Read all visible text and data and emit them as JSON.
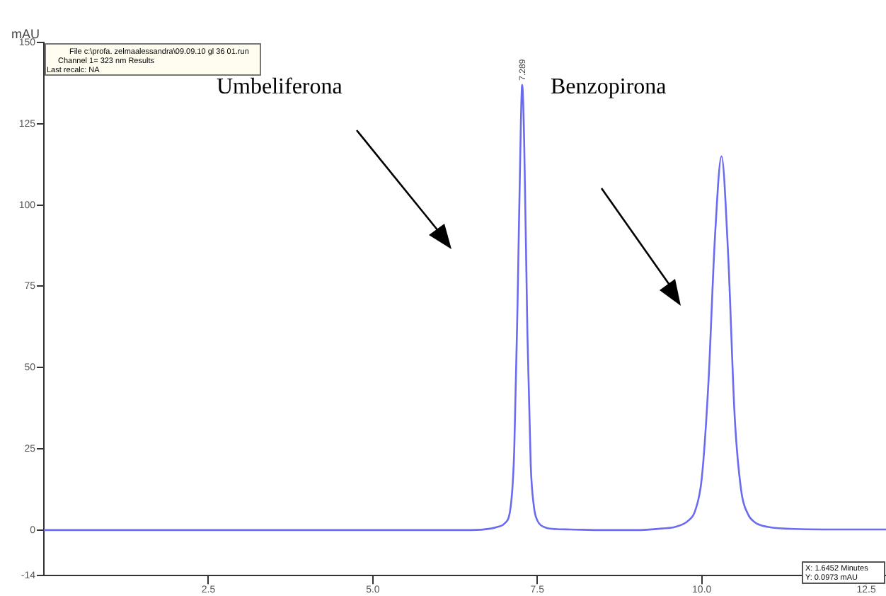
{
  "chart_data": {
    "type": "line",
    "ylabel": "mAU",
    "x": [
      0,
      1,
      2,
      3,
      4,
      5,
      6,
      6.5,
      6.8,
      6.9,
      7.0,
      7.1,
      7.15,
      7.2,
      7.25,
      7.27,
      7.3,
      7.35,
      7.4,
      7.45,
      7.5,
      7.6,
      7.8,
      8.0,
      8.5,
      9.0,
      9.4,
      9.6,
      9.8,
      9.9,
      10.0,
      10.1,
      10.2,
      10.3,
      10.4,
      10.5,
      10.6,
      10.7,
      10.8,
      11.0,
      11.5,
      12.0,
      12.8
    ],
    "series": [
      {
        "color": "#6b6bf0",
        "values": [
          0,
          0,
          0,
          0,
          0,
          0,
          0,
          0,
          0.5,
          1,
          2,
          8,
          25,
          70,
          125,
          137,
          120,
          60,
          20,
          7,
          3,
          1,
          0.3,
          0.2,
          0,
          0,
          0.5,
          1,
          3,
          6,
          16,
          45,
          90,
          115,
          85,
          35,
          12,
          5,
          2.5,
          1,
          0.3,
          0.2,
          0.2
        ]
      }
    ],
    "xlim": [
      0,
      12.8
    ],
    "xticks": [
      {
        "value": 2.5,
        "label": "2.5"
      },
      {
        "value": 5,
        "label": "5.0"
      },
      {
        "value": 7.5,
        "label": "7.5"
      },
      {
        "value": 10,
        "label": "10.0"
      },
      {
        "value": 12.5,
        "label": "12.5"
      }
    ],
    "ylim": [
      -14,
      150
    ],
    "yticks": [
      -14,
      0,
      25,
      50,
      75,
      100,
      125,
      150
    ],
    "grid": false,
    "legend": false,
    "marker": "none",
    "line_style": "solid",
    "annotations": [
      "File c:\\profa. zelmaalessandra\\09.09.10 gl 36 01.run",
      "Channel 1= 323 nm Results",
      "Last recalc: NA",
      "Umbeliferona",
      "Benzopirona",
      "X: 1.6452 Minutes",
      "Y: 0.0973 mAU",
      {
        "text": "7.289",
        "x": 7.27,
        "y": 137
      }
    ]
  }
}
